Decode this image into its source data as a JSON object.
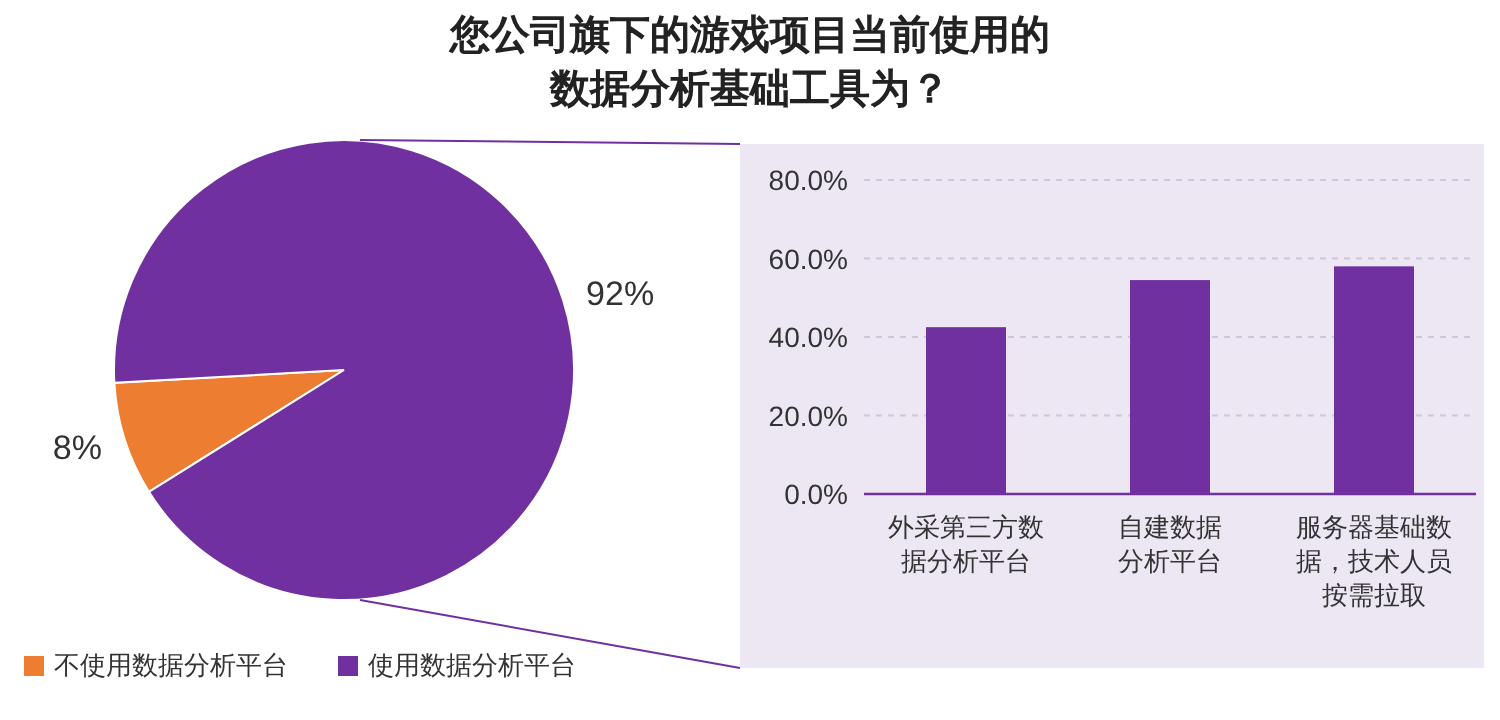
{
  "chart_data": [
    {
      "type": "pie",
      "title": "您公司旗下的游戏项目当前使用的数据分析基础工具为？",
      "categories": [
        "不使用数据分析平台",
        "使用数据分析平台"
      ],
      "values": [
        8,
        92
      ],
      "colors": [
        "#ed7d31",
        "#7030a0"
      ],
      "value_labels": [
        "8%",
        "92%"
      ],
      "legend": "bottom left"
    },
    {
      "type": "bar",
      "categories": [
        "外采第三方数据分析平台",
        "自建数据分析平台",
        "服务器基础数据，技术人员按需拉取"
      ],
      "values": [
        42.5,
        54.5,
        58
      ],
      "color": "#7030a0",
      "ylim": [
        0,
        80
      ],
      "yticks": [
        {
          "value": 0,
          "label": "0.0%"
        },
        {
          "value": 20,
          "label": "20.0%"
        },
        {
          "value": 40,
          "label": "40.0%"
        },
        {
          "value": 60,
          "label": "60.0%"
        },
        {
          "value": 80,
          "label": "80.0%"
        }
      ],
      "grid": "y"
    }
  ]
}
